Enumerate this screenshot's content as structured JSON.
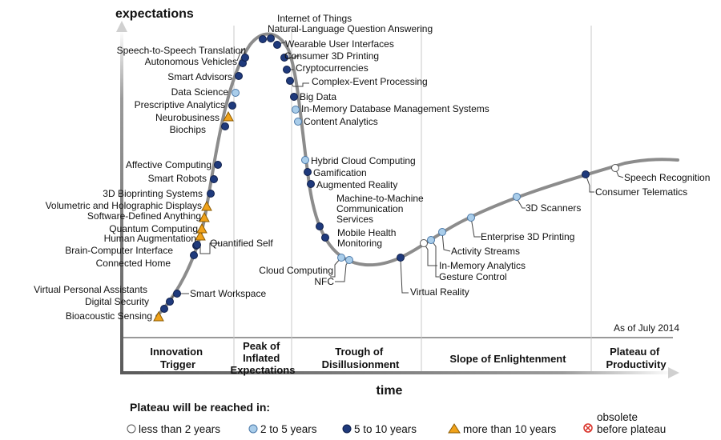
{
  "axis": {
    "y_title": "expectations",
    "x_title": "time"
  },
  "as_of": "As of July 2014",
  "phases": [
    {
      "lines": [
        "Innovation",
        "Trigger"
      ]
    },
    {
      "lines": [
        "Peak of",
        "Inflated",
        "Expectations"
      ]
    },
    {
      "lines": [
        "Trough of",
        "Disillusionment"
      ]
    },
    {
      "lines": [
        "Slope of Enlightenment"
      ]
    },
    {
      "lines": [
        "Plateau of",
        "Productivity"
      ]
    }
  ],
  "legend": {
    "title": "Plateau will be reached in:",
    "items": [
      {
        "key": "lt2",
        "label": "less than 2 years"
      },
      {
        "key": "2to5",
        "label": "2 to 5 years"
      },
      {
        "key": "5to10",
        "label": "5 to 10 years"
      },
      {
        "key": "gt10",
        "label": "more than 10 years"
      },
      {
        "key": "obsolete",
        "label_lines": [
          "obsolete",
          "before plateau"
        ]
      }
    ]
  },
  "colors": {
    "curve": "#8c8c8c",
    "lt2": "#ffffff",
    "2to5": "#a9cdea",
    "5to10": "#1f3a7c",
    "gt10": "#f0a21a",
    "obsolete": "#d9342b",
    "leader": "#444444"
  },
  "technologies": [
    {
      "name": "Bioacoustic Sensing",
      "category": "gt10"
    },
    {
      "name": "Digital Security",
      "category": "5to10"
    },
    {
      "name": "Virtual Personal Assistants",
      "category": "5to10"
    },
    {
      "name": "Smart Workspace",
      "category": "5to10"
    },
    {
      "name": "Connected Home",
      "category": "5to10"
    },
    {
      "name": "Brain-Computer Interface",
      "category": "5to10"
    },
    {
      "name": "Quantified Self",
      "category": "5to10"
    },
    {
      "name": "Human Augmentation",
      "category": "gt10"
    },
    {
      "name": "Quantum Computing",
      "category": "gt10"
    },
    {
      "name": "Software-Defined Anything",
      "category": "gt10"
    },
    {
      "name": "Volumetric and Holographic Displays",
      "category": "gt10"
    },
    {
      "name": "3D Bioprinting Systems",
      "category": "5to10"
    },
    {
      "name": "Smart Robots",
      "category": "5to10"
    },
    {
      "name": "Affective  Computing",
      "category": "5to10"
    },
    {
      "name": "Biochips",
      "category": "5to10"
    },
    {
      "name": "Neurobusiness",
      "category": "gt10"
    },
    {
      "name": "Prescriptive Analytics",
      "category": "5to10"
    },
    {
      "name": "Data Science",
      "category": "2to5"
    },
    {
      "name": "Smart Advisors",
      "category": "5to10"
    },
    {
      "name": "Autonomous Vehicles",
      "category": "5to10"
    },
    {
      "name": "Speech-to-Speech Translation",
      "category": "5to10"
    },
    {
      "name": "Internet of Things",
      "category": "5to10"
    },
    {
      "name": "Natural-Language Question Answering",
      "category": "5to10"
    },
    {
      "name": "Wearable User Interfaces",
      "category": "5to10"
    },
    {
      "name": "Consumer 3D Printing",
      "category": "5to10"
    },
    {
      "name": "Cryptocurrencies",
      "category": "5to10"
    },
    {
      "name": "Complex-Event Processing",
      "category": "5to10"
    },
    {
      "name": "Big Data",
      "category": "5to10"
    },
    {
      "name": "In-Memory Database Management Systems",
      "category": "2to5"
    },
    {
      "name": "Content Analytics",
      "category": "2to5"
    },
    {
      "name": "Hybrid Cloud Computing",
      "category": "2to5"
    },
    {
      "name": "Gamification",
      "category": "5to10"
    },
    {
      "name": "Augmented Reality",
      "category": "5to10"
    },
    {
      "name": "Machine-to-Machine Communication Services",
      "category": "5to10"
    },
    {
      "name": "Mobile Health Monitoring",
      "category": "5to10"
    },
    {
      "name": "Cloud Computing",
      "category": "2to5"
    },
    {
      "name": "NFC",
      "category": "2to5"
    },
    {
      "name": "Virtual Reality",
      "category": "5to10"
    },
    {
      "name": "Gesture Control",
      "category": "2to5"
    },
    {
      "name": "In-Memory Analytics",
      "category": "lt2"
    },
    {
      "name": "Activity  Streams",
      "category": "2to5"
    },
    {
      "name": "Enterprise 3D Printing",
      "category": "2to5"
    },
    {
      "name": "3D Scanners",
      "category": "2to5"
    },
    {
      "name": "Consumer Telematics",
      "category": "5to10"
    },
    {
      "name": "Speech Recognition",
      "category": "lt2"
    }
  ]
}
